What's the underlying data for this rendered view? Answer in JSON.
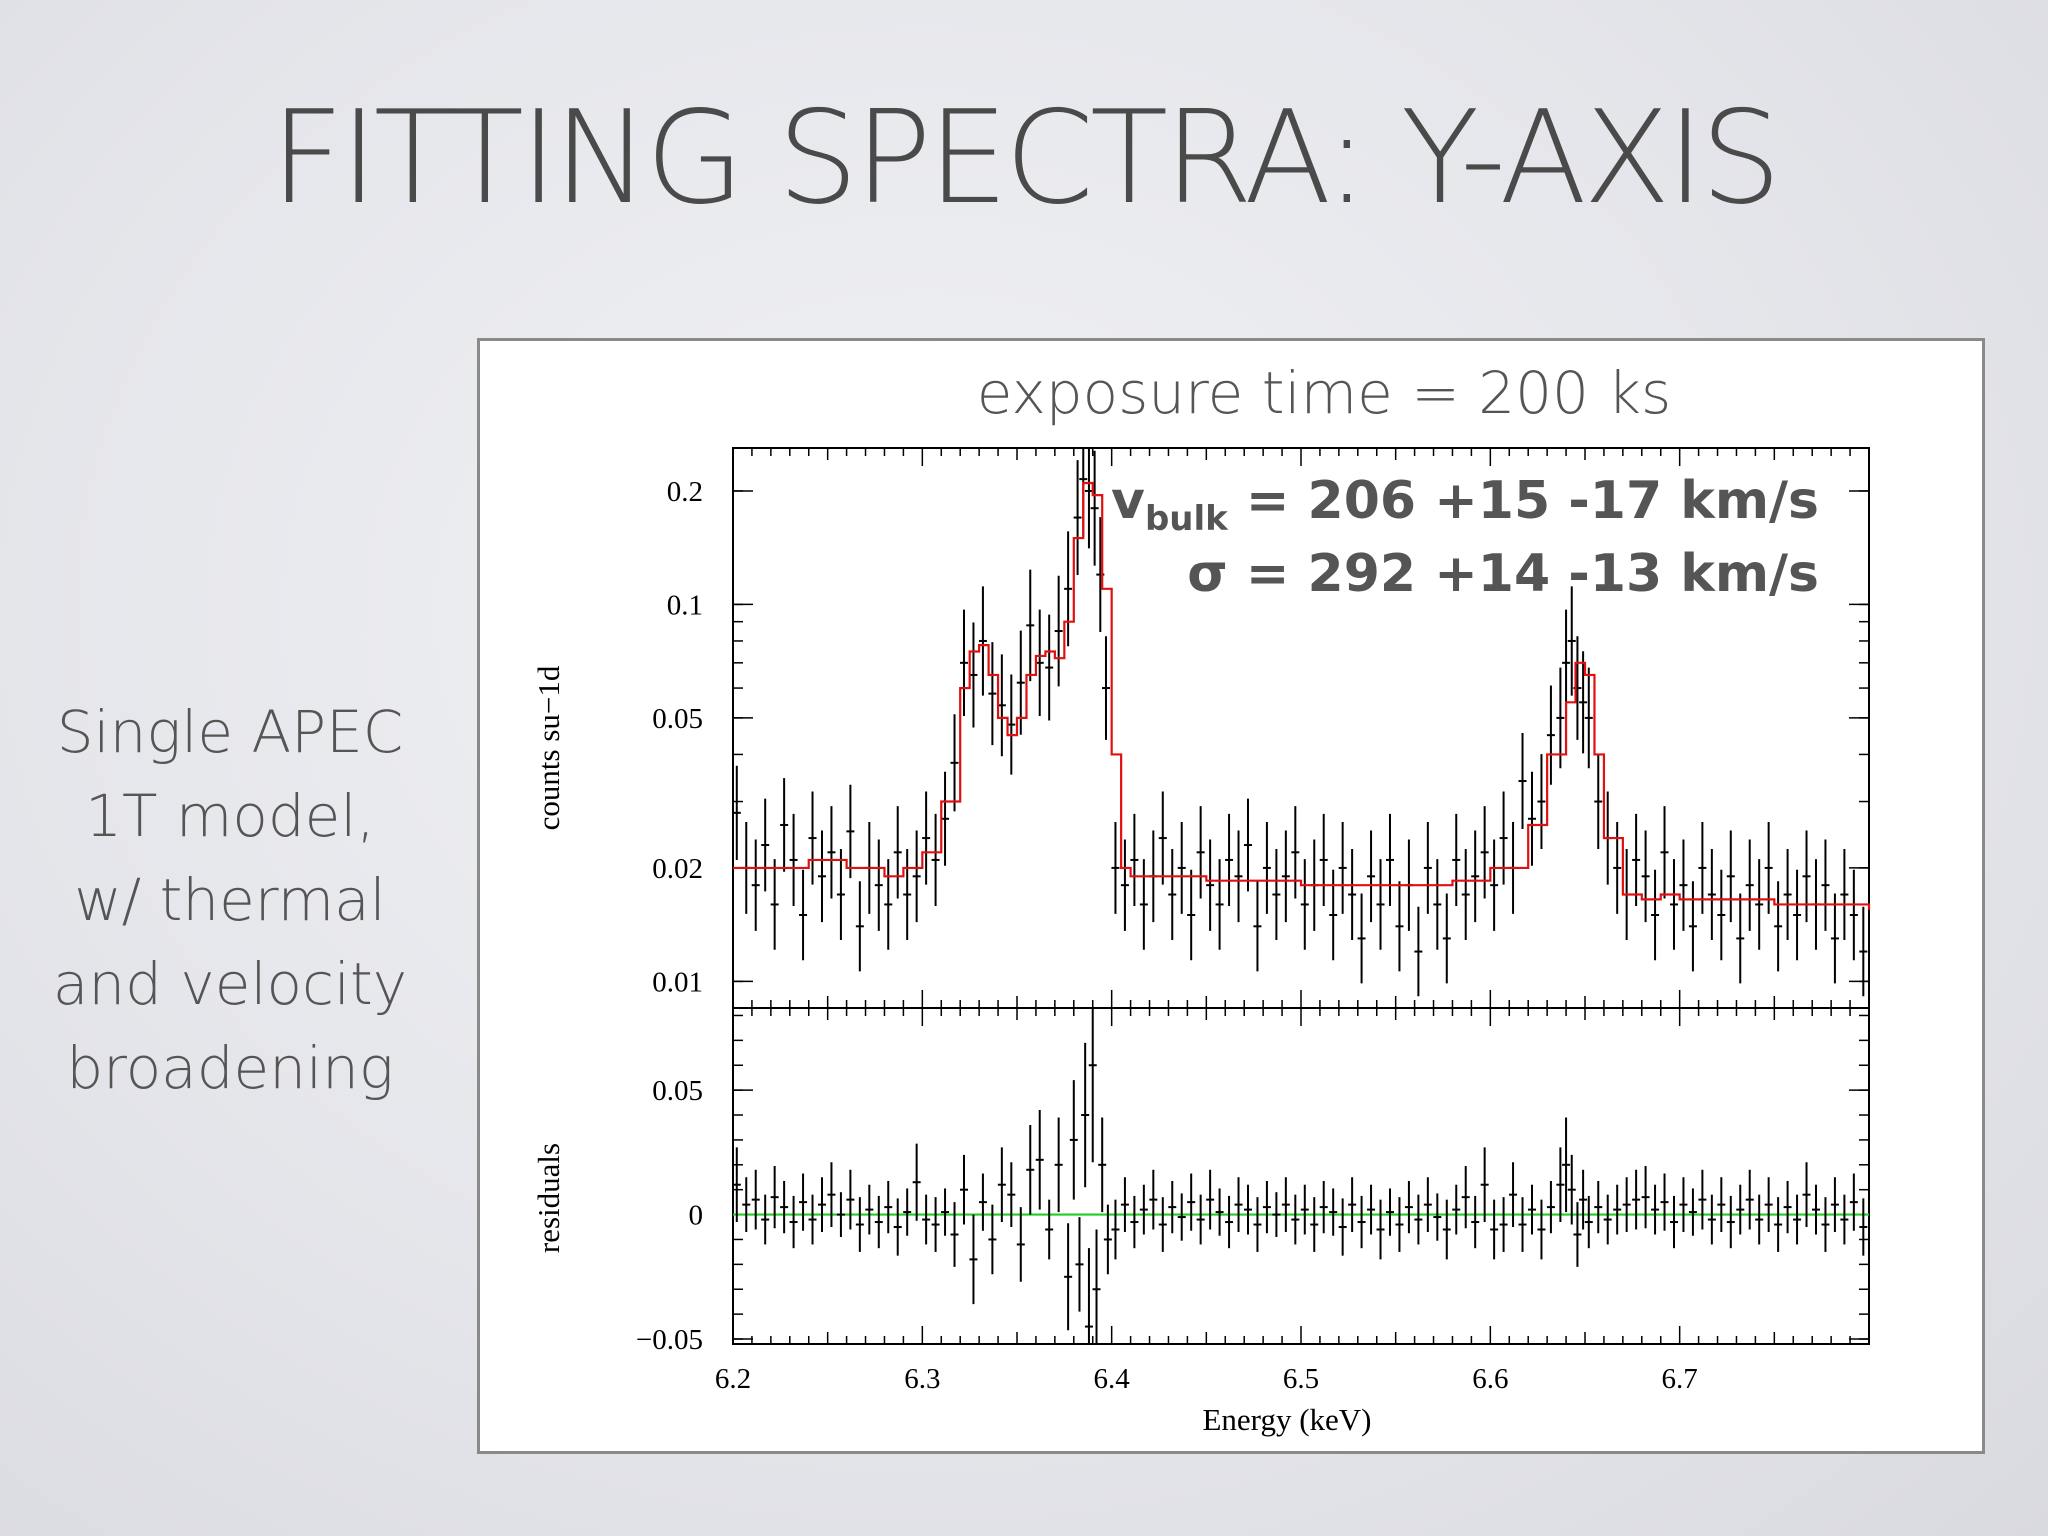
{
  "slide": {
    "title": "FITTING SPECTRA: Y-AXIS",
    "side_lines": [
      "Single APEC",
      "1T model,",
      "w/ thermal",
      "and velocity",
      "broadening"
    ]
  },
  "colors": {
    "model": "#e01010",
    "zero_line": "#22cc22",
    "data": "#000000"
  },
  "chart_data": {
    "type": "line",
    "title": "exposure time = 200 ks",
    "annotations": {
      "vbulk_symbol": "v",
      "vbulk_sub": "bulk",
      "vbulk_value": " = 206 +15 -17 km/s",
      "sigma_line": "σ = 292 +14 -13 km/s"
    },
    "xlabel": "Energy (keV)",
    "xlim": [
      6.2,
      6.8
    ],
    "xticks": [
      "6.2",
      "6.3",
      "6.4",
      "6.5",
      "6.6",
      "6.7"
    ],
    "top_panel": {
      "ylabel": "counts su−1d",
      "yscale": "log",
      "ylim": [
        0.0085,
        0.26
      ],
      "yticks": [
        {
          "v": 0.2,
          "label": "0.2"
        },
        {
          "v": 0.1,
          "label": "0.1"
        },
        {
          "v": 0.05,
          "label": "0.05"
        },
        {
          "v": 0.02,
          "label": "0.02"
        },
        {
          "v": 0.01,
          "label": "0.01"
        }
      ],
      "model": [
        [
          6.2,
          0.02
        ],
        [
          6.22,
          0.02
        ],
        [
          6.24,
          0.021
        ],
        [
          6.26,
          0.02
        ],
        [
          6.28,
          0.019
        ],
        [
          6.29,
          0.02
        ],
        [
          6.3,
          0.022
        ],
        [
          6.31,
          0.03
        ],
        [
          6.32,
          0.06
        ],
        [
          6.325,
          0.075
        ],
        [
          6.33,
          0.078
        ],
        [
          6.335,
          0.065
        ],
        [
          6.34,
          0.05
        ],
        [
          6.345,
          0.045
        ],
        [
          6.35,
          0.05
        ],
        [
          6.355,
          0.065
        ],
        [
          6.36,
          0.073
        ],
        [
          6.365,
          0.075
        ],
        [
          6.37,
          0.072
        ],
        [
          6.375,
          0.09
        ],
        [
          6.38,
          0.15
        ],
        [
          6.385,
          0.21
        ],
        [
          6.39,
          0.195
        ],
        [
          6.395,
          0.11
        ],
        [
          6.4,
          0.04
        ],
        [
          6.405,
          0.02
        ],
        [
          6.41,
          0.019
        ],
        [
          6.45,
          0.0185
        ],
        [
          6.5,
          0.018
        ],
        [
          6.55,
          0.018
        ],
        [
          6.58,
          0.0185
        ],
        [
          6.6,
          0.02
        ],
        [
          6.62,
          0.026
        ],
        [
          6.63,
          0.04
        ],
        [
          6.64,
          0.055
        ],
        [
          6.645,
          0.07
        ],
        [
          6.65,
          0.065
        ],
        [
          6.655,
          0.04
        ],
        [
          6.66,
          0.024
        ],
        [
          6.67,
          0.017
        ],
        [
          6.68,
          0.0165
        ],
        [
          6.69,
          0.017
        ],
        [
          6.7,
          0.0165
        ],
        [
          6.75,
          0.016
        ],
        [
          6.8,
          0.0155
        ]
      ],
      "data": [
        [
          6.202,
          0.028
        ],
        [
          6.207,
          0.02
        ],
        [
          6.212,
          0.018
        ],
        [
          6.217,
          0.023
        ],
        [
          6.222,
          0.016
        ],
        [
          6.227,
          0.026
        ],
        [
          6.232,
          0.021
        ],
        [
          6.237,
          0.015
        ],
        [
          6.242,
          0.024
        ],
        [
          6.247,
          0.019
        ],
        [
          6.252,
          0.022
        ],
        [
          6.257,
          0.017
        ],
        [
          6.262,
          0.025
        ],
        [
          6.267,
          0.014
        ],
        [
          6.272,
          0.02
        ],
        [
          6.277,
          0.018
        ],
        [
          6.282,
          0.016
        ],
        [
          6.287,
          0.022
        ],
        [
          6.292,
          0.017
        ],
        [
          6.297,
          0.019
        ],
        [
          6.302,
          0.024
        ],
        [
          6.307,
          0.021
        ],
        [
          6.312,
          0.027
        ],
        [
          6.317,
          0.038
        ],
        [
          6.322,
          0.07
        ],
        [
          6.327,
          0.065
        ],
        [
          6.332,
          0.08
        ],
        [
          6.337,
          0.058
        ],
        [
          6.342,
          0.054
        ],
        [
          6.347,
          0.048
        ],
        [
          6.352,
          0.062
        ],
        [
          6.357,
          0.088
        ],
        [
          6.362,
          0.07
        ],
        [
          6.367,
          0.068
        ],
        [
          6.372,
          0.085
        ],
        [
          6.377,
          0.11
        ],
        [
          6.382,
          0.17
        ],
        [
          6.385,
          0.215
        ],
        [
          6.388,
          0.2
        ],
        [
          6.391,
          0.18
        ],
        [
          6.394,
          0.12
        ],
        [
          6.397,
          0.06
        ],
        [
          6.402,
          0.02
        ],
        [
          6.407,
          0.018
        ],
        [
          6.412,
          0.021
        ],
        [
          6.417,
          0.016
        ],
        [
          6.422,
          0.019
        ],
        [
          6.427,
          0.024
        ],
        [
          6.432,
          0.017
        ],
        [
          6.437,
          0.02
        ],
        [
          6.442,
          0.015
        ],
        [
          6.447,
          0.022
        ],
        [
          6.452,
          0.018
        ],
        [
          6.457,
          0.016
        ],
        [
          6.462,
          0.021
        ],
        [
          6.467,
          0.019
        ],
        [
          6.472,
          0.023
        ],
        [
          6.477,
          0.014
        ],
        [
          6.482,
          0.02
        ],
        [
          6.487,
          0.017
        ],
        [
          6.492,
          0.019
        ],
        [
          6.497,
          0.022
        ],
        [
          6.502,
          0.016
        ],
        [
          6.507,
          0.018
        ],
        [
          6.512,
          0.021
        ],
        [
          6.517,
          0.015
        ],
        [
          6.522,
          0.02
        ],
        [
          6.527,
          0.017
        ],
        [
          6.532,
          0.013
        ],
        [
          6.537,
          0.019
        ],
        [
          6.542,
          0.016
        ],
        [
          6.547,
          0.021
        ],
        [
          6.552,
          0.014
        ],
        [
          6.557,
          0.018
        ],
        [
          6.562,
          0.012
        ],
        [
          6.567,
          0.02
        ],
        [
          6.572,
          0.016
        ],
        [
          6.577,
          0.013
        ],
        [
          6.582,
          0.021
        ],
        [
          6.587,
          0.017
        ],
        [
          6.592,
          0.019
        ],
        [
          6.597,
          0.022
        ],
        [
          6.602,
          0.018
        ],
        [
          6.607,
          0.024
        ],
        [
          6.612,
          0.02
        ],
        [
          6.617,
          0.034
        ],
        [
          6.622,
          0.027
        ],
        [
          6.627,
          0.03
        ],
        [
          6.632,
          0.045
        ],
        [
          6.637,
          0.05
        ],
        [
          6.64,
          0.07
        ],
        [
          6.643,
          0.08
        ],
        [
          6.646,
          0.06
        ],
        [
          6.649,
          0.055
        ],
        [
          6.652,
          0.05
        ],
        [
          6.657,
          0.03
        ],
        [
          6.662,
          0.024
        ],
        [
          6.667,
          0.02
        ],
        [
          6.672,
          0.017
        ],
        [
          6.677,
          0.021
        ],
        [
          6.682,
          0.019
        ],
        [
          6.687,
          0.015
        ],
        [
          6.692,
          0.022
        ],
        [
          6.697,
          0.016
        ],
        [
          6.702,
          0.018
        ],
        [
          6.707,
          0.014
        ],
        [
          6.712,
          0.02
        ],
        [
          6.717,
          0.017
        ],
        [
          6.722,
          0.015
        ],
        [
          6.727,
          0.019
        ],
        [
          6.732,
          0.013
        ],
        [
          6.737,
          0.018
        ],
        [
          6.742,
          0.016
        ],
        [
          6.747,
          0.02
        ],
        [
          6.752,
          0.014
        ],
        [
          6.757,
          0.017
        ],
        [
          6.762,
          0.015
        ],
        [
          6.767,
          0.019
        ],
        [
          6.772,
          0.016
        ],
        [
          6.777,
          0.018
        ],
        [
          6.782,
          0.013
        ],
        [
          6.787,
          0.017
        ],
        [
          6.792,
          0.015
        ],
        [
          6.797,
          0.012
        ]
      ]
    },
    "bottom_panel": {
      "ylabel": "residuals",
      "ylim": [
        -0.052,
        0.083
      ],
      "yticks": [
        {
          "v": 0.05,
          "label": "0.05"
        },
        {
          "v": 0,
          "label": "0"
        },
        {
          "v": -0.05,
          "label": "−0.05"
        }
      ],
      "data": [
        [
          6.202,
          0.012
        ],
        [
          6.207,
          0.004
        ],
        [
          6.212,
          0.006
        ],
        [
          6.217,
          -0.002
        ],
        [
          6.222,
          0.007
        ],
        [
          6.227,
          0.003
        ],
        [
          6.232,
          -0.003
        ],
        [
          6.237,
          0.005
        ],
        [
          6.242,
          -0.002
        ],
        [
          6.247,
          0.004
        ],
        [
          6.252,
          0.008
        ],
        [
          6.257,
          0.0
        ],
        [
          6.262,
          0.006
        ],
        [
          6.267,
          -0.004
        ],
        [
          6.272,
          0.002
        ],
        [
          6.277,
          -0.003
        ],
        [
          6.282,
          0.003
        ],
        [
          6.287,
          -0.005
        ],
        [
          6.292,
          0.001
        ],
        [
          6.297,
          0.013
        ],
        [
          6.302,
          -0.002
        ],
        [
          6.307,
          -0.004
        ],
        [
          6.312,
          0.001
        ],
        [
          6.317,
          -0.008
        ],
        [
          6.322,
          0.01
        ],
        [
          6.327,
          -0.018
        ],
        [
          6.332,
          0.005
        ],
        [
          6.337,
          -0.01
        ],
        [
          6.342,
          0.012
        ],
        [
          6.347,
          0.008
        ],
        [
          6.352,
          -0.012
        ],
        [
          6.357,
          0.018
        ],
        [
          6.362,
          0.022
        ],
        [
          6.367,
          -0.006
        ],
        [
          6.372,
          0.02
        ],
        [
          6.377,
          -0.025
        ],
        [
          6.38,
          0.03
        ],
        [
          6.383,
          -0.02
        ],
        [
          6.386,
          0.04
        ],
        [
          6.388,
          -0.045
        ],
        [
          6.39,
          0.06
        ],
        [
          6.392,
          -0.03
        ],
        [
          6.395,
          0.02
        ],
        [
          6.398,
          -0.01
        ],
        [
          6.402,
          -0.006
        ],
        [
          6.407,
          0.004
        ],
        [
          6.412,
          -0.003
        ],
        [
          6.417,
          0.002
        ],
        [
          6.422,
          0.006
        ],
        [
          6.427,
          -0.004
        ],
        [
          6.432,
          0.003
        ],
        [
          6.437,
          -0.001
        ],
        [
          6.442,
          0.005
        ],
        [
          6.447,
          -0.002
        ],
        [
          6.452,
          0.006
        ],
        [
          6.457,
          0.001
        ],
        [
          6.462,
          -0.003
        ],
        [
          6.467,
          0.004
        ],
        [
          6.472,
          0.002
        ],
        [
          6.477,
          -0.004
        ],
        [
          6.482,
          0.003
        ],
        [
          6.487,
          0.0
        ],
        [
          6.492,
          0.004
        ],
        [
          6.497,
          -0.002
        ],
        [
          6.502,
          0.002
        ],
        [
          6.507,
          -0.004
        ],
        [
          6.512,
          0.003
        ],
        [
          6.517,
          0.001
        ],
        [
          6.522,
          -0.005
        ],
        [
          6.527,
          0.004
        ],
        [
          6.532,
          -0.003
        ],
        [
          6.537,
          0.002
        ],
        [
          6.542,
          -0.006
        ],
        [
          6.547,
          0.001
        ],
        [
          6.552,
          -0.004
        ],
        [
          6.557,
          0.003
        ],
        [
          6.562,
          -0.002
        ],
        [
          6.567,
          0.004
        ],
        [
          6.572,
          -0.001
        ],
        [
          6.577,
          -0.006
        ],
        [
          6.582,
          0.002
        ],
        [
          6.587,
          0.007
        ],
        [
          6.592,
          -0.003
        ],
        [
          6.597,
          0.012
        ],
        [
          6.602,
          -0.006
        ],
        [
          6.607,
          -0.004
        ],
        [
          6.612,
          0.008
        ],
        [
          6.617,
          -0.004
        ],
        [
          6.622,
          0.002
        ],
        [
          6.627,
          -0.006
        ],
        [
          6.632,
          0.003
        ],
        [
          6.637,
          0.012
        ],
        [
          6.64,
          0.02
        ],
        [
          6.643,
          0.01
        ],
        [
          6.646,
          -0.008
        ],
        [
          6.649,
          0.006
        ],
        [
          6.652,
          -0.003
        ],
        [
          6.657,
          0.003
        ],
        [
          6.662,
          -0.002
        ],
        [
          6.667,
          0.002
        ],
        [
          6.672,
          0.004
        ],
        [
          6.677,
          0.006
        ],
        [
          6.682,
          0.007
        ],
        [
          6.687,
          0.002
        ],
        [
          6.692,
          0.005
        ],
        [
          6.697,
          -0.003
        ],
        [
          6.702,
          0.004
        ],
        [
          6.707,
          0.001
        ],
        [
          6.712,
          0.006
        ],
        [
          6.717,
          -0.002
        ],
        [
          6.722,
          0.004
        ],
        [
          6.727,
          -0.003
        ],
        [
          6.732,
          0.002
        ],
        [
          6.737,
          0.006
        ],
        [
          6.742,
          -0.002
        ],
        [
          6.747,
          0.004
        ],
        [
          6.752,
          -0.004
        ],
        [
          6.757,
          0.003
        ],
        [
          6.762,
          -0.002
        ],
        [
          6.767,
          0.008
        ],
        [
          6.772,
          0.002
        ],
        [
          6.777,
          -0.004
        ],
        [
          6.782,
          0.004
        ],
        [
          6.787,
          -0.002
        ],
        [
          6.792,
          0.005
        ],
        [
          6.797,
          -0.005
        ]
      ]
    }
  }
}
